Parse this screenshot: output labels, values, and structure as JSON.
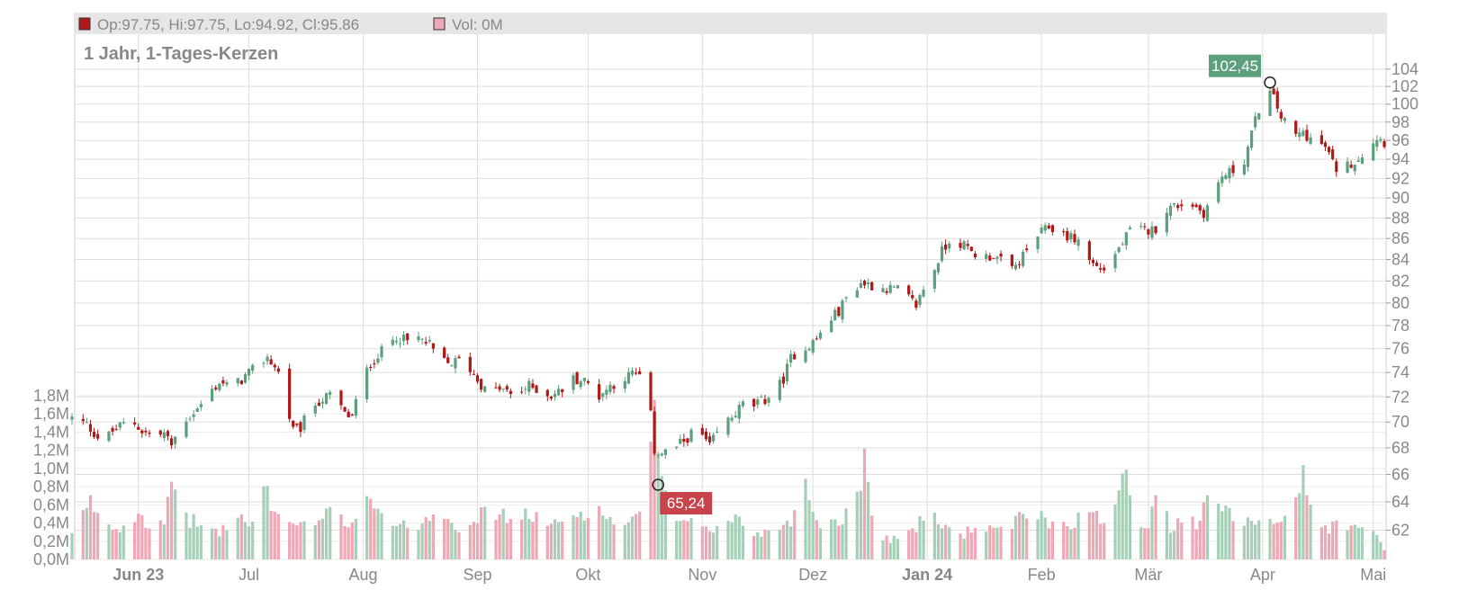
{
  "legend": {
    "ohlc_label": "Op:97.75, Hi:97.75, Lo:94.92, Cl:95.86",
    "volume_label": "Vol: 0M"
  },
  "colors": {
    "up": "#5c9f7d",
    "down": "#b01717",
    "vol_up": "#a7cfb8",
    "vol_down": "#eea7b4",
    "grid": "#dddddd",
    "label_high_bg": "#5c9f7d",
    "label_low_bg": "#c9434a"
  },
  "chart_data": {
    "type": "candlestick",
    "title": "",
    "subtitle": "1 Jahr, 1-Tages-Kerzen",
    "price_axis": {
      "min": 60,
      "max": 106,
      "scale": "log",
      "ticks": [
        62,
        64,
        66,
        68,
        70,
        72,
        74,
        76,
        78,
        80,
        82,
        84,
        86,
        88,
        90,
        92,
        94,
        96,
        98,
        100,
        102,
        104
      ]
    },
    "volume_axis": {
      "min": 0,
      "max": 1.8,
      "unit": "M",
      "tick_labels": [
        "0,0M",
        "0,2M",
        "0,4M",
        "0,6M",
        "0,8M",
        "1,0M",
        "1,2M",
        "1,4M",
        "1,6M",
        "1,8M"
      ]
    },
    "x_axis": {
      "labels": [
        {
          "text": "Jun 23",
          "day": 18,
          "bold": true
        },
        {
          "text": "Jul",
          "day": 48,
          "bold": false
        },
        {
          "text": "Aug",
          "day": 79,
          "bold": false
        },
        {
          "text": "Sep",
          "day": 110,
          "bold": false
        },
        {
          "text": "Okt",
          "day": 140,
          "bold": false
        },
        {
          "text": "Nov",
          "day": 171,
          "bold": false
        },
        {
          "text": "Dez",
          "day": 201,
          "bold": false
        },
        {
          "text": "Jan 24",
          "day": 232,
          "bold": true
        },
        {
          "text": "Feb",
          "day": 263,
          "bold": false
        },
        {
          "text": "Mär",
          "day": 292,
          "bold": false
        },
        {
          "text": "Apr",
          "day": 323,
          "bold": false
        },
        {
          "text": "Mai",
          "day": 353,
          "bold": false
        }
      ],
      "day_range": [
        0,
        356
      ]
    },
    "price_keypoints": [
      [
        0,
        70.3
      ],
      [
        4,
        69.8
      ],
      [
        8,
        68.5
      ],
      [
        12,
        69.5
      ],
      [
        16,
        70.2
      ],
      [
        19,
        69.3
      ],
      [
        22,
        68.9
      ],
      [
        25,
        69.1
      ],
      [
        27,
        68.2
      ],
      [
        30,
        70
      ],
      [
        34,
        71
      ],
      [
        37,
        72.2
      ],
      [
        40,
        73.2
      ],
      [
        43,
        72.8
      ],
      [
        46,
        73.4
      ],
      [
        49,
        74.2
      ],
      [
        53,
        75.3
      ],
      [
        56,
        74
      ],
      [
        58,
        71.5
      ],
      [
        60,
        69.3
      ],
      [
        62,
        69.5
      ],
      [
        65,
        71.3
      ],
      [
        68,
        71.8
      ],
      [
        71,
        72.3
      ],
      [
        74,
        70.6
      ],
      [
        76,
        70.4
      ],
      [
        78,
        72.8
      ],
      [
        81,
        74.8
      ],
      [
        85,
        76.1
      ],
      [
        88,
        77.1
      ],
      [
        91,
        76.6
      ],
      [
        94,
        76.9
      ],
      [
        97,
        76.3
      ],
      [
        99,
        75.3
      ],
      [
        102,
        74.7
      ],
      [
        105,
        75
      ],
      [
        108,
        74.3
      ],
      [
        110,
        73.4
      ],
      [
        113,
        72.2
      ],
      [
        116,
        72.7
      ],
      [
        119,
        72.2
      ],
      [
        122,
        72.5
      ],
      [
        124,
        72.9
      ],
      [
        127,
        72.5
      ],
      [
        130,
        72.1
      ],
      [
        133,
        72.6
      ],
      [
        136,
        73.5
      ],
      [
        139,
        73.3
      ],
      [
        141,
        72.8
      ],
      [
        143,
        72.1
      ],
      [
        146,
        72.9
      ],
      [
        149,
        73.4
      ],
      [
        152,
        73.9
      ],
      [
        156,
        73.5
      ],
      [
        157,
        70.5
      ],
      [
        158,
        67.8
      ],
      [
        160,
        67.6
      ],
      [
        163,
        67.9
      ],
      [
        166,
        68.5
      ],
      [
        169,
        69.4
      ],
      [
        171,
        68.9
      ],
      [
        173,
        68.1
      ],
      [
        176,
        69.6
      ],
      [
        179,
        70.4
      ],
      [
        182,
        71.4
      ],
      [
        185,
        71.3
      ],
      [
        188,
        71.8
      ],
      [
        191,
        72.5
      ],
      [
        193,
        73.5
      ],
      [
        195,
        75.2
      ],
      [
        197,
        75.9
      ],
      [
        199,
        76.1
      ],
      [
        202,
        76.8
      ],
      [
        205,
        78.3
      ],
      [
        208,
        79.3
      ],
      [
        211,
        81
      ],
      [
        214,
        81.8
      ],
      [
        216,
        81.7
      ],
      [
        219,
        81.4
      ],
      [
        222,
        81.3
      ],
      [
        224,
        81.2
      ],
      [
        227,
        80.4
      ],
      [
        229,
        79.8
      ],
      [
        231,
        81.3
      ],
      [
        233,
        82.3
      ],
      [
        236,
        84.8
      ],
      [
        238,
        85.8
      ],
      [
        241,
        85.6
      ],
      [
        244,
        84.7
      ],
      [
        247,
        84.2
      ],
      [
        250,
        84.4
      ],
      [
        252,
        83.8
      ],
      [
        254,
        82.8
      ],
      [
        256,
        83.4
      ],
      [
        259,
        84.8
      ],
      [
        262,
        86.3
      ],
      [
        265,
        87.1
      ],
      [
        268,
        86.6
      ],
      [
        271,
        86.1
      ],
      [
        273,
        85.8
      ],
      [
        275,
        84.3
      ],
      [
        278,
        83.3
      ],
      [
        280,
        83.1
      ],
      [
        283,
        84.5
      ],
      [
        285,
        85.6
      ],
      [
        288,
        87.3
      ],
      [
        290,
        86.8
      ],
      [
        293,
        86.8
      ],
      [
        295,
        87.3
      ],
      [
        297,
        88.9
      ],
      [
        300,
        89.3
      ],
      [
        303,
        89.6
      ],
      [
        305,
        89.1
      ],
      [
        307,
        88.5
      ],
      [
        309,
        89.9
      ],
      [
        312,
        92.2
      ],
      [
        315,
        92.8
      ],
      [
        318,
        93.9
      ],
      [
        320,
        96.7
      ],
      [
        322,
        99.5
      ],
      [
        323,
        101.2
      ],
      [
        324,
        101.8
      ],
      [
        326,
        100.6
      ],
      [
        328,
        98.6
      ],
      [
        330,
        97.3
      ],
      [
        332,
        96.5
      ],
      [
        334,
        96.9
      ],
      [
        336,
        96.2
      ],
      [
        338,
        95.6
      ],
      [
        340,
        95.3
      ],
      [
        342,
        93.6
      ],
      [
        344,
        92.5
      ],
      [
        346,
        93.4
      ],
      [
        348,
        93.8
      ],
      [
        350,
        94.6
      ],
      [
        352,
        95.3
      ],
      [
        354,
        96.4
      ],
      [
        356,
        95.86
      ]
    ],
    "volume_keypoints": [
      [
        0,
        0.27
      ],
      [
        5,
        0.62
      ],
      [
        8,
        0.48
      ],
      [
        12,
        0.33
      ],
      [
        15,
        0.42
      ],
      [
        18,
        0.55
      ],
      [
        22,
        0.31
      ],
      [
        25,
        0.4
      ],
      [
        28,
        0.92
      ],
      [
        31,
        0.45
      ],
      [
        35,
        0.38
      ],
      [
        40,
        0.3
      ],
      [
        45,
        0.48
      ],
      [
        49,
        0.35
      ],
      [
        52,
        0.88
      ],
      [
        55,
        0.5
      ],
      [
        60,
        0.41
      ],
      [
        65,
        0.33
      ],
      [
        70,
        0.52
      ],
      [
        75,
        0.38
      ],
      [
        80,
        0.75
      ],
      [
        85,
        0.44
      ],
      [
        90,
        0.36
      ],
      [
        95,
        0.41
      ],
      [
        100,
        0.58
      ],
      [
        105,
        0.35
      ],
      [
        110,
        0.48
      ],
      [
        115,
        0.52
      ],
      [
        120,
        0.43
      ],
      [
        125,
        0.5
      ],
      [
        130,
        0.36
      ],
      [
        135,
        0.45
      ],
      [
        140,
        0.55
      ],
      [
        145,
        0.48
      ],
      [
        150,
        0.36
      ],
      [
        155,
        0.48
      ],
      [
        157,
        1.5
      ],
      [
        158,
        1.62
      ],
      [
        160,
        0.78
      ],
      [
        163,
        0.45
      ],
      [
        166,
        0.37
      ],
      [
        170,
        0.4
      ],
      [
        175,
        0.33
      ],
      [
        180,
        0.46
      ],
      [
        185,
        0.29
      ],
      [
        190,
        0.31
      ],
      [
        195,
        0.45
      ],
      [
        199,
        0.78
      ],
      [
        203,
        0.38
      ],
      [
        208,
        0.45
      ],
      [
        212,
        0.52
      ],
      [
        215,
        1.12
      ],
      [
        218,
        0.3
      ],
      [
        222,
        0.22
      ],
      [
        226,
        0.27
      ],
      [
        230,
        0.4
      ],
      [
        234,
        0.45
      ],
      [
        238,
        0.33
      ],
      [
        242,
        0.28
      ],
      [
        246,
        0.4
      ],
      [
        250,
        0.3
      ],
      [
        255,
        0.37
      ],
      [
        260,
        0.55
      ],
      [
        265,
        0.42
      ],
      [
        270,
        0.38
      ],
      [
        275,
        0.5
      ],
      [
        280,
        0.43
      ],
      [
        283,
        0.62
      ],
      [
        285,
        1.18
      ],
      [
        288,
        0.45
      ],
      [
        292,
        0.36
      ],
      [
        295,
        1.1
      ],
      [
        298,
        0.32
      ],
      [
        302,
        0.45
      ],
      [
        306,
        0.37
      ],
      [
        309,
        0.9
      ],
      [
        312,
        0.55
      ],
      [
        316,
        0.42
      ],
      [
        320,
        0.47
      ],
      [
        324,
        0.42
      ],
      [
        328,
        0.45
      ],
      [
        331,
        0.56
      ],
      [
        334,
        0.9
      ],
      [
        337,
        0.38
      ],
      [
        341,
        0.35
      ],
      [
        345,
        0.42
      ],
      [
        349,
        0.31
      ],
      [
        352,
        0.38
      ],
      [
        356,
        0.12
      ]
    ],
    "annotations": [
      {
        "label": "102,45",
        "day": 325,
        "value": 102.45,
        "kind": "high"
      },
      {
        "label": "65,24",
        "day": 159,
        "value": 65.24,
        "kind": "low"
      }
    ],
    "grid": true,
    "legend_position": "top"
  }
}
